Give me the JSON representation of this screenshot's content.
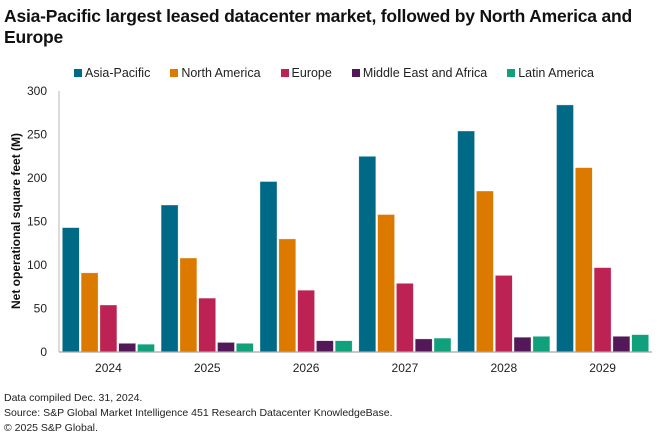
{
  "chart_data": {
    "type": "bar",
    "title": "Asia-Pacific largest leased datacenter market, followed by North America and Europe",
    "xlabel": "",
    "ylabel": "Net operational square feet (M)",
    "ylim": [
      0,
      300
    ],
    "yticks": [
      0,
      50,
      100,
      150,
      200,
      250,
      300
    ],
    "grid": false,
    "legend_position": "top-center",
    "categories": [
      "2024",
      "2025",
      "2026",
      "2027",
      "2028",
      "2029"
    ],
    "series": [
      {
        "name": "Asia-Pacific",
        "color": "#006a86",
        "values": [
          143,
          169,
          196,
          225,
          254,
          284
        ]
      },
      {
        "name": "North America",
        "color": "#dc7a00",
        "values": [
          91,
          108,
          130,
          158,
          185,
          212
        ]
      },
      {
        "name": "Europe",
        "color": "#bc2253",
        "values": [
          54,
          62,
          71,
          79,
          88,
          97
        ]
      },
      {
        "name": "Middle East and Africa",
        "color": "#521858",
        "values": [
          10,
          11,
          13,
          15,
          17,
          18
        ]
      },
      {
        "name": "Latin America",
        "color": "#11a07c",
        "values": [
          9,
          10,
          13,
          16,
          18,
          20
        ]
      }
    ]
  },
  "footer": {
    "line1": "Data compiled Dec. 31, 2024.",
    "line2": "Source: S&P Global Market Intelligence 451 Research Datacenter KnowledgeBase.",
    "line3": "© 2025 S&P Global."
  }
}
